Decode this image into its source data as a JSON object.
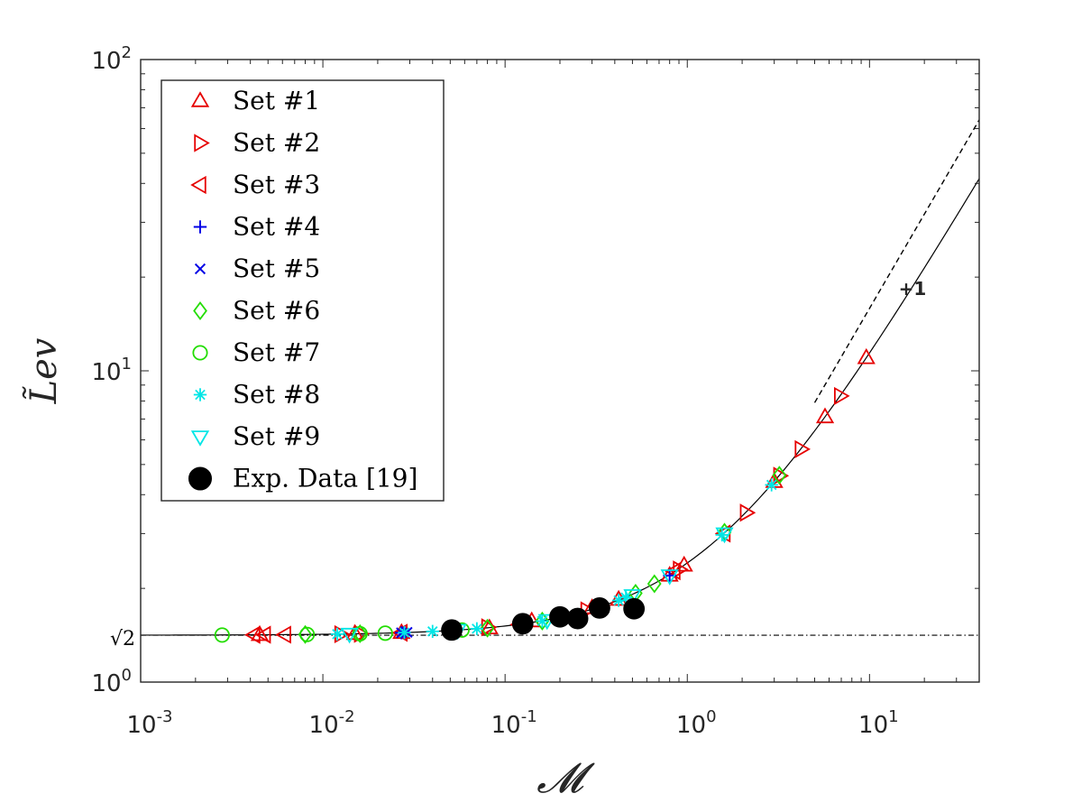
{
  "chart_data": {
    "type": "scatter",
    "title": "",
    "xlabel": "𝓜",
    "ylabel": "L̃ev",
    "xscale": "log",
    "yscale": "log",
    "xlim": [
      0.001,
      40
    ],
    "ylim": [
      1,
      100
    ],
    "grid": false,
    "legend_position": "top-left",
    "x_tick_labels": [
      {
        "value": 0.001,
        "base": "10",
        "exp": "-3"
      },
      {
        "value": 0.01,
        "base": "10",
        "exp": "-2"
      },
      {
        "value": 0.1,
        "base": "10",
        "exp": "-1"
      },
      {
        "value": 1,
        "base": "10",
        "exp": "0"
      },
      {
        "value": 10,
        "base": "10",
        "exp": "1"
      }
    ],
    "y_tick_labels": [
      {
        "value": 1,
        "base": "10",
        "exp": "0"
      },
      {
        "value": 10,
        "base": "10",
        "exp": "1"
      },
      {
        "value": 100,
        "base": "10",
        "exp": "2"
      }
    ],
    "annotations": [
      {
        "text": "+1",
        "x": 15,
        "y": 17
      },
      {
        "text": "√2",
        "x": 0.00072,
        "y": 1.4142,
        "kind": "y-axis-label"
      }
    ],
    "reference_lines": [
      {
        "name": "sqrt2-line",
        "y": 1.4142,
        "style": "dashdot"
      },
      {
        "name": "slope-line",
        "x": [
          5,
          40
        ],
        "y": [
          7.9,
          64
        ],
        "style": "dashed"
      }
    ],
    "fit_curve": {
      "formula": "sqrt(2) + M",
      "x_range": [
        0.001,
        40
      ]
    },
    "series": [
      {
        "name": "Set #1",
        "marker": "triangle-up",
        "color": "#e60000",
        "filled": false,
        "x": [
          0.0045,
          0.006,
          0.015,
          0.027,
          0.08,
          0.12,
          0.14,
          0.2,
          0.3,
          0.42,
          0.8,
          0.95,
          3.0,
          5.7,
          9.6
        ],
        "y": [
          1.418,
          1.42,
          1.43,
          1.44,
          1.49,
          1.54,
          1.56,
          1.62,
          1.71,
          1.84,
          2.2,
          2.36,
          4.4,
          7.1,
          11.0
        ]
      }
    ],
    "legend_entries": [
      {
        "name": "Set #1",
        "marker": "triangle-up",
        "color": "#e60000",
        "filled": false
      },
      {
        "name": "Set #2",
        "marker": "triangle-right",
        "color": "#e60000",
        "filled": false
      },
      {
        "name": "Set #3",
        "marker": "triangle-left",
        "color": "#e60000",
        "filled": false
      },
      {
        "name": "Set #4",
        "marker": "plus",
        "color": "#0000e6",
        "filled": false
      },
      {
        "name": "Set #5",
        "marker": "cross",
        "color": "#0000e6",
        "filled": false
      },
      {
        "name": "Set #6",
        "marker": "diamond",
        "color": "#22dd00",
        "filled": false
      },
      {
        "name": "Set #7",
        "marker": "circle",
        "color": "#22dd00",
        "filled": false
      },
      {
        "name": "Set #8",
        "marker": "asterisk",
        "color": "#00e6e6",
        "filled": false
      },
      {
        "name": "Set #9",
        "marker": "triangle-down",
        "color": "#00e6e6",
        "filled": false
      },
      {
        "name": "Exp. Data [19]",
        "marker": "circle",
        "color": "#000000",
        "filled": true
      }
    ]
  }
}
